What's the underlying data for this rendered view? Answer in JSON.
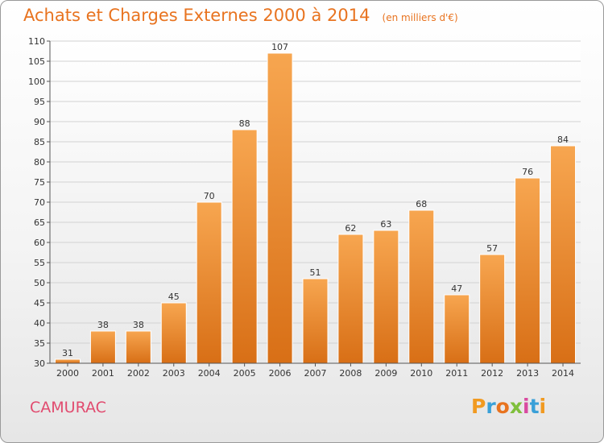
{
  "header": {
    "title": "Achats et Charges Externes 2000 à 2014",
    "unit": "(en milliers d'€)"
  },
  "footer": {
    "commune": "CAMURAC",
    "logo_letters": [
      "P",
      "r",
      "o",
      "x",
      "i",
      "t",
      "i"
    ],
    "logo_colors": [
      "#f19a21",
      "#3aa0d8",
      "#e8731f",
      "#7fbf3b",
      "#d94aa0",
      "#3aa0d8",
      "#f19a21"
    ]
  },
  "chart_data": {
    "type": "bar",
    "categories": [
      "2000",
      "2001",
      "2002",
      "2003",
      "2004",
      "2005",
      "2006",
      "2007",
      "2008",
      "2009",
      "2010",
      "2011",
      "2012",
      "2013",
      "2014"
    ],
    "values": [
      31,
      38,
      38,
      45,
      70,
      88,
      107,
      51,
      62,
      63,
      68,
      47,
      57,
      76,
      84
    ],
    "title": "Achats et Charges Externes 2000 à 2014",
    "ylim": [
      30,
      110
    ],
    "yticks": [
      30,
      35,
      40,
      45,
      50,
      55,
      60,
      65,
      70,
      75,
      80,
      85,
      90,
      95,
      100,
      105,
      110
    ],
    "grid": true,
    "bar_color_top": "#f7a650",
    "bar_color_bottom": "#d86f16"
  }
}
